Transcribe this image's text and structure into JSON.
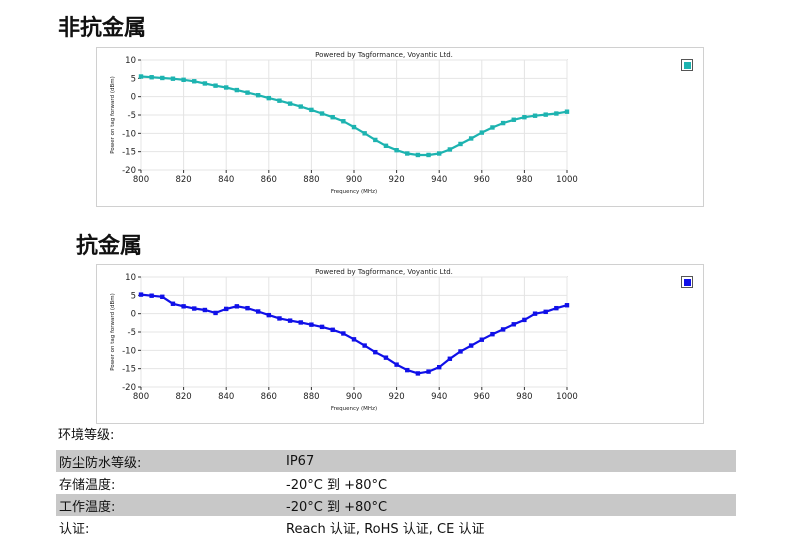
{
  "sections": {
    "non_antimetal_title": "非抗金属",
    "antimetal_title": "抗金属"
  },
  "chart_data": [
    {
      "type": "line",
      "title": "Powered by Tagformance, Voyantic Ltd.",
      "xlabel": "Frequency (MHz)",
      "ylabel": "Power on tag forward (dBm)",
      "xlim": [
        800,
        1000
      ],
      "ylim": [
        -20,
        10
      ],
      "xticks": [
        800,
        820,
        840,
        860,
        880,
        900,
        920,
        940,
        960,
        980,
        1000
      ],
      "yticks": [
        10,
        5,
        0,
        -5,
        -10,
        -15,
        -20
      ],
      "grid": true,
      "series": [
        {
          "color": "#1db3b0",
          "x": [
            800,
            805,
            810,
            815,
            820,
            825,
            830,
            835,
            840,
            845,
            850,
            855,
            860,
            865,
            870,
            875,
            880,
            885,
            890,
            895,
            900,
            905,
            910,
            915,
            920,
            925,
            930,
            935,
            940,
            945,
            950,
            955,
            960,
            965,
            970,
            975,
            980,
            985,
            990,
            995,
            1000
          ],
          "y": [
            5.5,
            5.3,
            5.1,
            4.9,
            4.6,
            4.2,
            3.6,
            3.0,
            2.5,
            1.8,
            1.1,
            0.4,
            -0.4,
            -1.1,
            -1.9,
            -2.7,
            -3.6,
            -4.6,
            -5.6,
            -6.7,
            -8.3,
            -10.0,
            -11.8,
            -13.4,
            -14.6,
            -15.5,
            -15.9,
            -15.9,
            -15.5,
            -14.4,
            -12.9,
            -11.4,
            -9.8,
            -8.4,
            -7.2,
            -6.3,
            -5.6,
            -5.2,
            -4.9,
            -4.6,
            -4.1
          ]
        }
      ]
    },
    {
      "type": "line",
      "title": "Powered by Tagformance, Voyantic Ltd.",
      "xlabel": "Frequency (MHz)",
      "ylabel": "Power on tag forward (dBm)",
      "xlim": [
        800,
        1000
      ],
      "ylim": [
        -20,
        10
      ],
      "xticks": [
        800,
        820,
        840,
        860,
        880,
        900,
        920,
        940,
        960,
        980,
        1000
      ],
      "yticks": [
        10,
        5,
        0,
        -5,
        -10,
        -15,
        -20
      ],
      "grid": true,
      "series": [
        {
          "color": "#1010e8",
          "x": [
            800,
            805,
            810,
            815,
            820,
            825,
            830,
            835,
            840,
            845,
            850,
            855,
            860,
            865,
            870,
            875,
            880,
            885,
            890,
            895,
            900,
            905,
            910,
            915,
            920,
            925,
            930,
            935,
            940,
            945,
            950,
            955,
            960,
            965,
            970,
            975,
            980,
            985,
            990,
            995,
            1000
          ],
          "y": [
            5.2,
            4.9,
            4.6,
            2.7,
            2.0,
            1.4,
            1.0,
            0.2,
            1.3,
            2.0,
            1.5,
            0.6,
            -0.4,
            -1.3,
            -1.9,
            -2.4,
            -3.0,
            -3.6,
            -4.4,
            -5.4,
            -7.0,
            -8.7,
            -10.5,
            -12.0,
            -13.9,
            -15.4,
            -16.3,
            -15.8,
            -14.6,
            -12.3,
            -10.3,
            -8.7,
            -7.1,
            -5.6,
            -4.3,
            -2.9,
            -1.7,
            0.0,
            0.5,
            1.5,
            2.3
          ]
        }
      ]
    }
  ],
  "environment": {
    "title": "环境等级:",
    "rows": [
      {
        "label": "防尘防水等级:",
        "value": "IP67"
      },
      {
        "label": "存储温度:",
        "value": "-20°C 到 +80°C"
      },
      {
        "label": "工作温度:",
        "value": "-20°C 到 +80°C"
      },
      {
        "label": "认证:",
        "value": "Reach 认证, RoHS 认证, CE 认证"
      }
    ]
  }
}
